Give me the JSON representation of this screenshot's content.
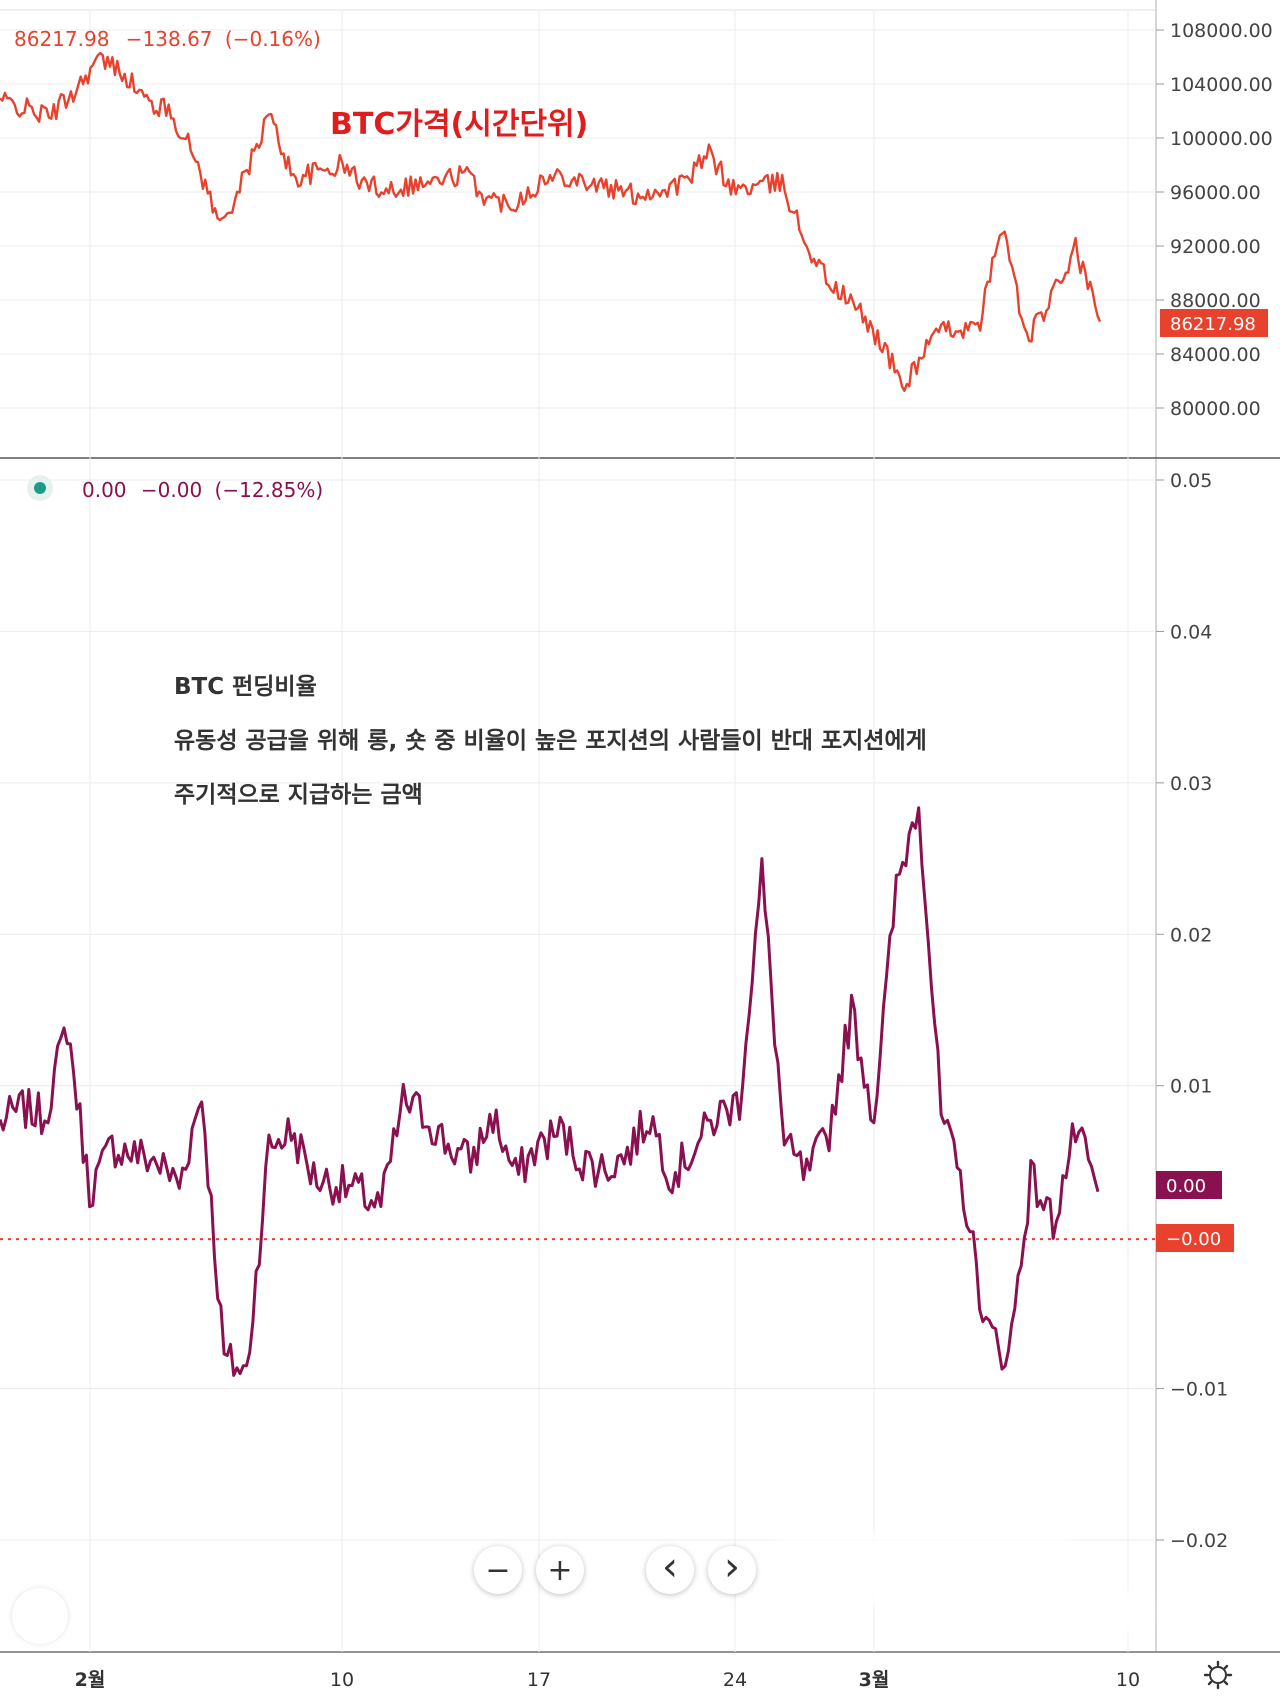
{
  "price_pane": {
    "legend": {
      "price": "86217.98",
      "change": "−138.67",
      "change_pct": "(−0.16%)"
    },
    "annotation": "BTC가격(시간단위)",
    "last_price_tag": "86217.98",
    "axis_ticks": [
      "108000.00",
      "104000.00",
      "100000.00",
      "96000.00",
      "92000.00",
      "88000.00",
      "84000.00",
      "80000.00"
    ],
    "color": "#e8422e"
  },
  "funding_pane": {
    "legend": {
      "value": "0.00",
      "change": "−0.00",
      "change_pct": "(−12.85%)"
    },
    "annotation": {
      "title": "BTC 펀딩비율",
      "line1": "유동성 공급을 위해 롱, 숏 중 비율이 높은 포지션의 사람들이 반대 포지션에게",
      "line2": "주기적으로 지급하는 금액"
    },
    "value_tag": "0.00",
    "baseline_tag": "−0.00",
    "axis_ticks": [
      "0.05",
      "0.04",
      "0.03",
      "0.02",
      "0.01",
      "0.00",
      "−0.01",
      "−0.02"
    ],
    "color": "#8a1150",
    "baseline_color": "#e8422e"
  },
  "x_axis": {
    "ticks": [
      "2월",
      "10",
      "17",
      "24",
      "3월",
      "10"
    ]
  },
  "toolbar": {
    "zoom_out": "−",
    "zoom_in": "+",
    "back": "‹",
    "forward": "›",
    "settings_icon": "gear-icon"
  },
  "chart_data": [
    {
      "type": "line",
      "title": "BTC가격(시간단위)",
      "x_ticks": [
        "2월",
        "10",
        "17",
        "24",
        "3월",
        "10"
      ],
      "ylim": [
        78000,
        109000
      ],
      "x": [
        0,
        1,
        2,
        3,
        4,
        5,
        6,
        7,
        8,
        9,
        10,
        11,
        12,
        13,
        14,
        15,
        16,
        17,
        18,
        19,
        20,
        21,
        22,
        23,
        24,
        25,
        26,
        27,
        28,
        29,
        30,
        31,
        32,
        33,
        34,
        35,
        36,
        37,
        38,
        39,
        40,
        41,
        42,
        43,
        44,
        45
      ],
      "values": [
        102800,
        102200,
        101600,
        103400,
        105800,
        105000,
        102700,
        101900,
        98500,
        93500,
        97000,
        101800,
        97000,
        97500,
        98000,
        96500,
        96300,
        96600,
        96800,
        97400,
        95400,
        95200,
        96600,
        97300,
        96800,
        96200,
        95800,
        96100,
        96700,
        98800,
        96200,
        96400,
        96700,
        92100,
        89100,
        87500,
        85000,
        81500,
        85000,
        86000,
        85700,
        93700,
        85000,
        88000,
        91800,
        86400
      ],
      "series_name": ""
    },
    {
      "type": "line",
      "title": "BTC 펀딩비율",
      "x_ticks": [
        "2월",
        "10",
        "17",
        "24",
        "3월",
        "10"
      ],
      "ylim": [
        -0.024,
        0.052
      ],
      "x": [
        0,
        1,
        2,
        3,
        4,
        5,
        6,
        7,
        8,
        9,
        10,
        11,
        12,
        13,
        14,
        15,
        16,
        17,
        18,
        19,
        20,
        21,
        22,
        23,
        24,
        25,
        26,
        27,
        28,
        29,
        30,
        31,
        32,
        33,
        34,
        35,
        36,
        37,
        38,
        39,
        40,
        41,
        42,
        43,
        44,
        45,
        46,
        47,
        48,
        49
      ],
      "values": [
        0.0075,
        0.0085,
        0.008,
        0.014,
        0.003,
        0.006,
        0.0055,
        0.005,
        0.0035,
        0.0095,
        -0.008,
        -0.009,
        0.006,
        0.007,
        0.004,
        0.0035,
        0.003,
        0.002,
        0.009,
        0.008,
        0.006,
        0.005,
        0.008,
        0.004,
        0.006,
        0.007,
        0.005,
        0.0045,
        0.0055,
        0.008,
        0.004,
        0.006,
        0.008,
        0.009,
        0.024,
        0.006,
        0.004,
        0.007,
        0.015,
        0.008,
        0.023,
        0.029,
        0.008,
        0.003,
        -0.006,
        -0.008,
        0.004,
        0.001,
        0.007,
        0.003
      ],
      "series_name": ""
    }
  ]
}
